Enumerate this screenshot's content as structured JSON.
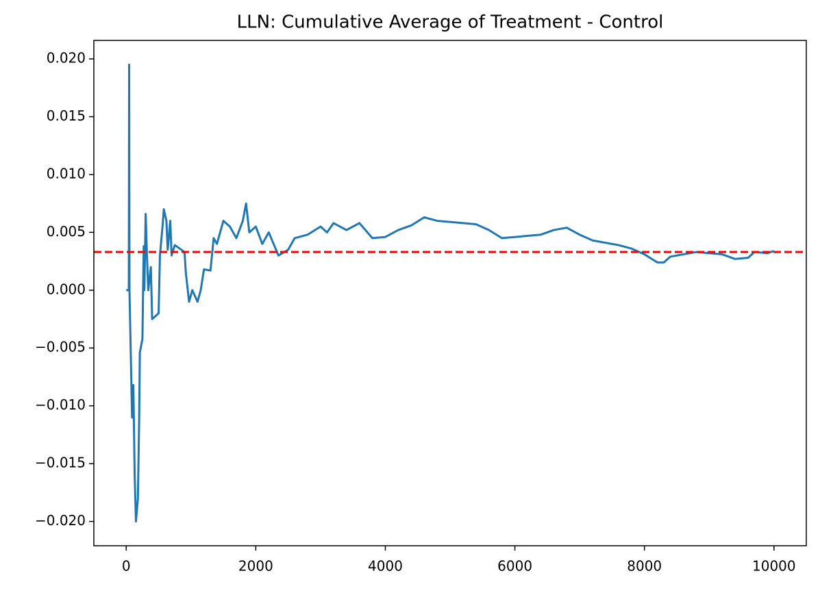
{
  "chart_data": {
    "type": "line",
    "title": "LLN: Cumulative Average of Treatment - Control",
    "x": [
      0,
      40,
      45,
      50,
      90,
      110,
      130,
      150,
      180,
      200,
      210,
      250,
      260,
      270,
      280,
      300,
      320,
      340,
      380,
      400,
      500,
      520,
      560,
      580,
      620,
      640,
      680,
      700,
      750,
      900,
      920,
      970,
      1020,
      1100,
      1150,
      1200,
      1300,
      1350,
      1400,
      1500,
      1600,
      1700,
      1800,
      1850,
      1900,
      2000,
      2100,
      2200,
      2350,
      2500,
      2600,
      2800,
      3000,
      3100,
      3200,
      3400,
      3600,
      3800,
      4000,
      4200,
      4400,
      4600,
      4800,
      5000,
      5400,
      5600,
      5800,
      6200,
      6400,
      6600,
      6800,
      7000,
      7200,
      7600,
      7800,
      8000,
      8200,
      8300,
      8400,
      8600,
      8800,
      9000,
      9200,
      9400,
      9600,
      9700,
      9900,
      9999
    ],
    "series": [
      {
        "color": "#1f77b4",
        "values": [
          0,
          0,
          0.0195,
          0,
          -0.011,
          -0.0082,
          -0.016,
          -0.02,
          -0.018,
          -0.011,
          -0.0054,
          -0.0042,
          0,
          0.0038,
          0,
          0.0066,
          0.003,
          0,
          0.002,
          -0.0025,
          -0.002,
          0.003,
          0.0055,
          0.007,
          0.006,
          0.0035,
          0.006,
          0.003,
          0.0039,
          0.0033,
          0.0015,
          -0.001,
          0,
          -0.001,
          0,
          0.0018,
          0.0017,
          0.0045,
          0.004,
          0.006,
          0.0055,
          0.0045,
          0.006,
          0.0075,
          0.005,
          0.0055,
          0.004,
          0.005,
          0.003,
          0.0035,
          0.0045,
          0.0048,
          0.0055,
          0.005,
          0.0058,
          0.0052,
          0.0058,
          0.0045,
          0.0046,
          0.0052,
          0.0056,
          0.0063,
          0.006,
          0.0059,
          0.0057,
          0.0052,
          0.0045,
          0.0047,
          0.0048,
          0.0052,
          0.0054,
          0.0048,
          0.0043,
          0.0039,
          0.0036,
          0.0031,
          0.0024,
          0.0024,
          0.0029,
          0.0031,
          0.0033,
          0.0032,
          0.0031,
          0.0027,
          0.0028,
          0.0033,
          0.0032,
          0.0034
        ]
      }
    ],
    "hline": {
      "value": 0.0033,
      "color": "#ff0000"
    },
    "xlim": [
      -500,
      10499
    ],
    "xticks": [
      0,
      2000,
      4000,
      6000,
      8000,
      10000
    ],
    "ylim": [
      -0.0221,
      0.0216
    ],
    "yticks": [
      {
        "value": -0.02,
        "label": "−0.020"
      },
      {
        "value": -0.015,
        "label": "−0.015"
      },
      {
        "value": -0.01,
        "label": "−0.010"
      },
      {
        "value": -0.005,
        "label": "−0.005"
      },
      {
        "value": 0,
        "label": "0.000"
      },
      {
        "value": 0.005,
        "label": "0.005"
      },
      {
        "value": 0.01,
        "label": "0.010"
      },
      {
        "value": 0.015,
        "label": "0.015"
      },
      {
        "value": 0.02,
        "label": "0.020"
      }
    ],
    "grid": false
  }
}
